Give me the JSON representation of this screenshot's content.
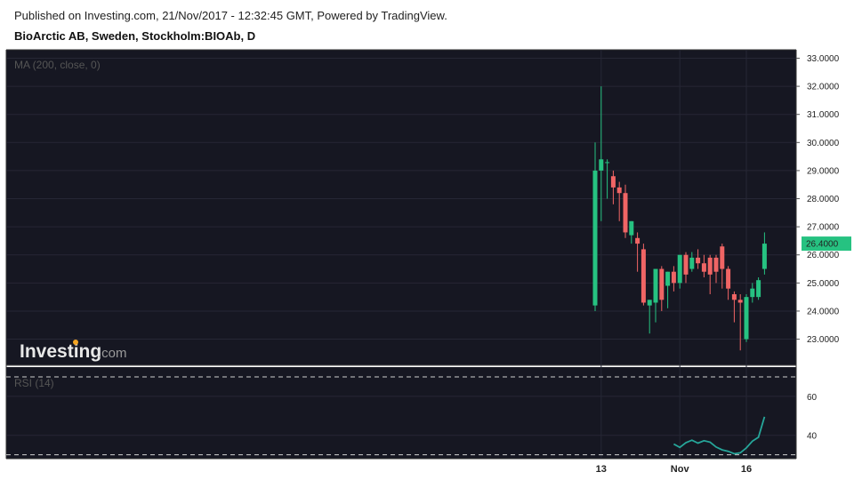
{
  "header": {
    "published": "Published on Investing.com, 21/Nov/2017 - 12:32:45 GMT, Powered by TradingView.",
    "symbol": "BioArctic AB, Sweden, Stockholm:BIOAb, D"
  },
  "watermark": {
    "brand": "Investing",
    "suffix": ".com"
  },
  "colors": {
    "up": "#26c281",
    "down": "#f06565",
    "background": "#161722",
    "rsi_line": "#26a69a",
    "grid": "#262735"
  },
  "chart_data": [
    {
      "type": "candlestick",
      "indicator_label": "MA (200, close, 0)",
      "y_ticks": [
        "23.0000",
        "24.0000",
        "25.0000",
        "26.0000",
        "27.0000",
        "28.0000",
        "29.0000",
        "30.0000",
        "31.0000",
        "32.0000",
        "33.0000"
      ],
      "ylim": [
        22.1,
        33.3
      ],
      "last_price": "26.4000",
      "x_ticks": [
        "13",
        "Nov",
        "16"
      ],
      "candles": [
        {
          "o": 24.2,
          "h": 30.0,
          "l": 24.0,
          "c": 29.0
        },
        {
          "o": 29.0,
          "h": 32.0,
          "l": 27.2,
          "c": 29.4
        },
        {
          "o": 29.3,
          "h": 29.4,
          "l": 28.0,
          "c": 29.3
        },
        {
          "o": 28.8,
          "h": 29.0,
          "l": 27.8,
          "c": 28.4
        },
        {
          "o": 28.4,
          "h": 28.6,
          "l": 27.2,
          "c": 28.2
        },
        {
          "o": 28.2,
          "h": 28.5,
          "l": 26.6,
          "c": 26.8
        },
        {
          "o": 26.7,
          "h": 27.2,
          "l": 26.4,
          "c": 27.2
        },
        {
          "o": 26.6,
          "h": 26.8,
          "l": 25.4,
          "c": 26.4
        },
        {
          "o": 26.2,
          "h": 26.4,
          "l": 24.2,
          "c": 24.3
        },
        {
          "o": 24.2,
          "h": 24.4,
          "l": 23.2,
          "c": 24.4
        },
        {
          "o": 24.3,
          "h": 25.5,
          "l": 23.6,
          "c": 25.5
        },
        {
          "o": 25.5,
          "h": 25.6,
          "l": 24.0,
          "c": 24.4
        },
        {
          "o": 24.9,
          "h": 25.4,
          "l": 24.1,
          "c": 25.4
        },
        {
          "o": 25.4,
          "h": 25.6,
          "l": 24.7,
          "c": 25.0
        },
        {
          "o": 25.0,
          "h": 26.0,
          "l": 24.8,
          "c": 26.0
        },
        {
          "o": 26.0,
          "h": 26.1,
          "l": 25.0,
          "c": 25.3
        },
        {
          "o": 25.5,
          "h": 26.1,
          "l": 25.4,
          "c": 25.9
        },
        {
          "o": 25.9,
          "h": 26.2,
          "l": 25.5,
          "c": 25.7
        },
        {
          "o": 25.7,
          "h": 26.0,
          "l": 25.2,
          "c": 25.4
        },
        {
          "o": 25.9,
          "h": 26.0,
          "l": 24.6,
          "c": 25.3
        },
        {
          "o": 25.9,
          "h": 26.0,
          "l": 25.0,
          "c": 25.4
        },
        {
          "o": 26.3,
          "h": 26.4,
          "l": 24.8,
          "c": 25.5
        },
        {
          "o": 25.5,
          "h": 25.6,
          "l": 24.4,
          "c": 24.8
        },
        {
          "o": 24.6,
          "h": 24.7,
          "l": 23.6,
          "c": 24.4
        },
        {
          "o": 24.4,
          "h": 24.6,
          "l": 22.6,
          "c": 24.3
        },
        {
          "o": 23.0,
          "h": 24.6,
          "l": 22.9,
          "c": 24.5
        },
        {
          "o": 24.5,
          "h": 25.0,
          "l": 24.3,
          "c": 24.8
        },
        {
          "o": 24.5,
          "h": 25.2,
          "l": 24.4,
          "c": 25.1
        },
        {
          "o": 25.5,
          "h": 26.8,
          "l": 25.3,
          "c": 26.4
        }
      ]
    },
    {
      "type": "line",
      "indicator_label": "RSI (14)",
      "y_ticks": [
        "40",
        "60"
      ],
      "ylim": [
        28,
        75
      ],
      "bands": [
        30,
        70
      ],
      "values": [
        35.5,
        33.8,
        36.2,
        37.5,
        36.0,
        37.2,
        36.5,
        34.0,
        32.5,
        31.8,
        30.5,
        31.0,
        33.5,
        37.0,
        39.0,
        49.5
      ]
    }
  ]
}
